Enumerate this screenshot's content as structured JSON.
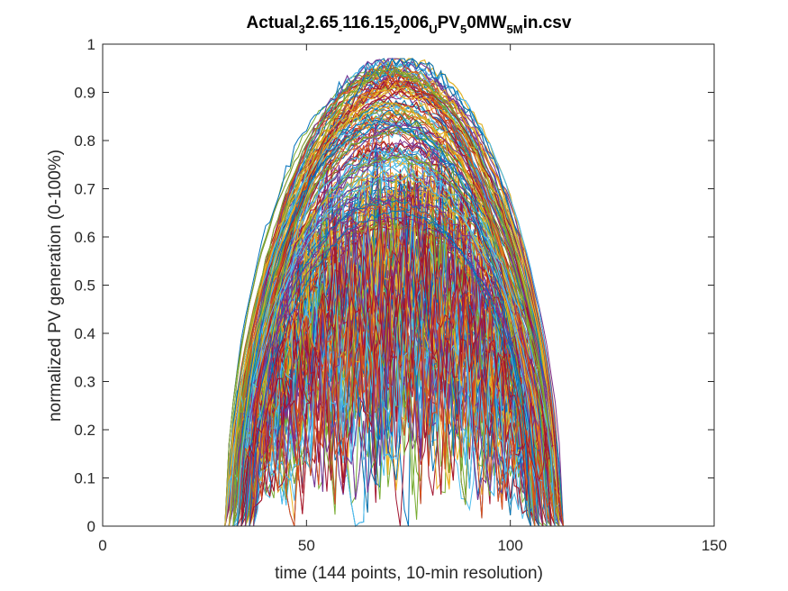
{
  "chart_data": {
    "type": "line",
    "title_parts": [
      {
        "text": "Actual",
        "sub": false
      },
      {
        "text": "3",
        "sub": true
      },
      {
        "text": "2.65",
        "sub": false
      },
      {
        "text": "-",
        "sub": true
      },
      {
        "text": "116.15",
        "sub": false
      },
      {
        "text": "2",
        "sub": true
      },
      {
        "text": "006",
        "sub": false
      },
      {
        "text": "U",
        "sub": true
      },
      {
        "text": "PV",
        "sub": false
      },
      {
        "text": "5",
        "sub": true
      },
      {
        "text": "0MW",
        "sub": false
      },
      {
        "text": "5M",
        "sub": true
      },
      {
        "text": "in.csv",
        "sub": false
      }
    ],
    "xlabel": "time (144 points, 10-min resolution)",
    "ylabel": "normalized PV generation (0-100%)",
    "xlim": [
      0,
      150
    ],
    "ylim": [
      0,
      1
    ],
    "xticks": [
      0,
      50,
      100,
      150
    ],
    "yticks": [
      0,
      0.1,
      0.2,
      0.3,
      0.4,
      0.5,
      0.6,
      0.7,
      0.8,
      0.9,
      1
    ],
    "xtick_labels": [
      "0",
      "50",
      "100",
      "150"
    ],
    "ytick_labels": [
      "0",
      "0.1",
      "0.2",
      "0.3",
      "0.4",
      "0.5",
      "0.6",
      "0.7",
      "0.8",
      "0.9",
      "1"
    ],
    "n_points": 144,
    "x_start": 1,
    "x_end": 144,
    "sunrise_range": [
      30,
      38
    ],
    "sunset_range": [
      104,
      113
    ],
    "peak_range": [
      0.62,
      0.97
    ],
    "max_value": 0.97,
    "series_count": 365,
    "grid": false,
    "series_colors": [
      "#0072BD",
      "#D95319",
      "#EDB120",
      "#7E2F8E",
      "#77AC30",
      "#4DBEEE",
      "#A2142F"
    ]
  }
}
